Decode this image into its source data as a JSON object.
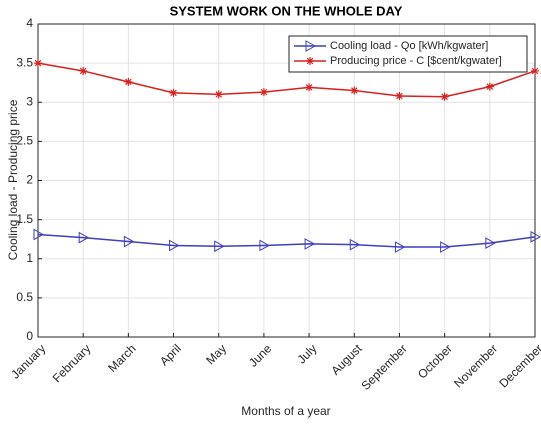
{
  "chart_data": {
    "type": "line",
    "title": "SYSTEM WORK ON THE WHOLE DAY",
    "x_label": "Months of a year",
    "y_label": "Cooling load - Producing price",
    "categories": [
      "January",
      "February",
      "March",
      "April",
      "May",
      "June",
      "July",
      "August",
      "September",
      "October",
      "November",
      "December"
    ],
    "series": [
      {
        "name": "Cooling load - Qo [kWh/kgwater]",
        "color": "#3f3fbf",
        "marker": "triangle-right",
        "values": [
          1.31,
          1.27,
          1.22,
          1.17,
          1.16,
          1.17,
          1.19,
          1.18,
          1.15,
          1.15,
          1.2,
          1.28
        ]
      },
      {
        "name": "Producing price - C [$cent/kgwater]",
        "color": "#d92020",
        "marker": "asterisk",
        "values": [
          3.5,
          3.4,
          3.26,
          3.12,
          3.1,
          3.13,
          3.19,
          3.15,
          3.08,
          3.07,
          3.2,
          3.4
        ]
      }
    ],
    "ylim": [
      0,
      4
    ],
    "yticks": [
      0,
      0.5,
      1,
      1.5,
      2,
      2.5,
      3,
      3.5,
      4
    ],
    "grid": true,
    "legend": "northeast"
  }
}
